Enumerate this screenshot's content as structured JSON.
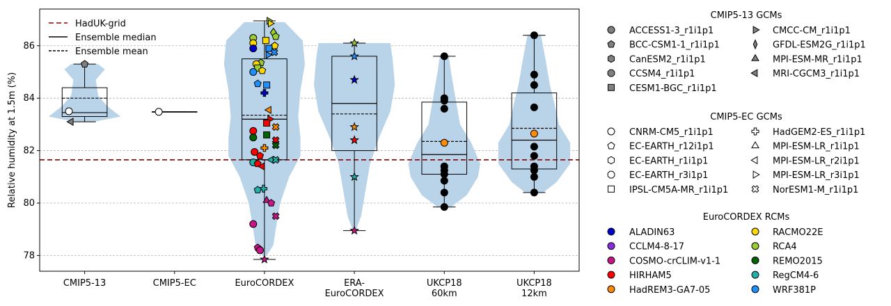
{
  "chart_data": {
    "type": "violin-box",
    "ylabel": "Relative humidity at 1.5m (%)",
    "ylim": [
      77.4,
      87.4
    ],
    "yticks": [
      78,
      80,
      82,
      84,
      86
    ],
    "grid": "horizontal dashed",
    "categories": [
      "CMIP5-13",
      "CMIP5-EC",
      "EuroCORDEX",
      "ERA-\nEuroCORDEX",
      "UKCP18\n60km",
      "UKCP18\n12km"
    ],
    "haduk_grid": 81.65,
    "legend_main": {
      "placement": "upper-left",
      "items": [
        "HadUK-grid",
        "Ensemble median",
        "Ensemble mean"
      ]
    },
    "colors": {
      "violin": "#b9d3e8",
      "haduk": "#8b0000",
      "grid": "#b0b0b0"
    },
    "groups": [
      {
        "name": "CMIP5-13",
        "violin": [
          [
            83.1,
            0.2
          ],
          [
            83.3,
            0.8
          ],
          [
            83.7,
            0.5
          ],
          [
            84.1,
            0.3
          ],
          [
            84.7,
            0.25
          ],
          [
            85.1,
            0.45
          ],
          [
            85.3,
            0.3
          ]
        ],
        "box": {
          "q1": 83.3,
          "median": 83.45,
          "q3": 84.4,
          "mean": 84.0,
          "wlo": 83.1,
          "whi": 85.3
        },
        "points": [
          {
            "v": 85.3,
            "m": "pentagon",
            "c": "#808080",
            "dx": 0
          },
          {
            "v": 83.1,
            "m": "tri-left",
            "c": "#808080",
            "dx": -0.3
          },
          {
            "v": 83.5,
            "m": "circle",
            "c": "#ffffff",
            "dx": -0.35
          }
        ]
      },
      {
        "name": "CMIP5-EC",
        "violin": [],
        "box": {
          "q1": 83.48,
          "median": 83.48,
          "q3": 83.48,
          "mean": 83.48,
          "wlo": 83.48,
          "whi": 83.48
        },
        "points": [
          {
            "v": 83.48,
            "m": "circle",
            "c": "#ffffff",
            "dx": -0.35
          }
        ]
      },
      {
        "name": "EuroCORDEX",
        "violin": [
          [
            78.0,
            0.05
          ],
          [
            78.4,
            0.2
          ],
          [
            79.0,
            0.25
          ],
          [
            80.0,
            0.35
          ],
          [
            81.0,
            0.55
          ],
          [
            81.8,
            0.8
          ],
          [
            82.5,
            0.8
          ],
          [
            83.3,
            0.75
          ],
          [
            84.3,
            0.8
          ],
          [
            85.3,
            0.9
          ],
          [
            86.2,
            0.85
          ],
          [
            86.9,
            0.45
          ]
        ],
        "box": {
          "q1": 81.65,
          "median": 83.2,
          "q3": 85.5,
          "mean": 83.35,
          "wlo": 77.85,
          "whi": 86.95
        },
        "points": [
          {
            "v": 86.95,
            "m": "tri-right",
            "c": "#9acd32",
            "dx": 0.1
          },
          {
            "v": 86.85,
            "m": "tri-right",
            "c": "#ffd700",
            "dx": 0.13
          },
          {
            "v": 86.5,
            "m": "diamond",
            "c": "#9acd32",
            "dx": 0.2
          },
          {
            "v": 86.35,
            "m": "pentagon",
            "c": "#9acd32",
            "dx": 0.25
          },
          {
            "v": 86.3,
            "m": "circle",
            "c": "#9acd32",
            "dx": -0.25
          },
          {
            "v": 86.2,
            "m": "square",
            "c": "#ffd700",
            "dx": 0.03
          },
          {
            "v": 86.1,
            "m": "circle",
            "c": "#ffd700",
            "dx": -0.25
          },
          {
            "v": 86.0,
            "m": "pentagon",
            "c": "#ffd700",
            "dx": 0.23
          },
          {
            "v": 85.9,
            "m": "circle",
            "c": "#0000cd",
            "dx": -0.25
          },
          {
            "v": 85.9,
            "m": "square",
            "c": "#1e90ff",
            "dx": 0.1
          },
          {
            "v": 85.75,
            "m": "cross",
            "c": "#1e90ff",
            "dx": 0.22
          },
          {
            "v": 85.65,
            "m": "tri-right",
            "c": "#1e90ff",
            "dx": 0.08
          },
          {
            "v": 85.35,
            "m": "pentagon",
            "c": "#9acd32",
            "dx": -0.08
          },
          {
            "v": 85.3,
            "m": "circle",
            "c": "#ffd700",
            "dx": -0.18
          },
          {
            "v": 85.15,
            "m": "square",
            "c": "#9acd32",
            "dx": -0.15
          },
          {
            "v": 85.05,
            "m": "pentagon",
            "c": "#ffd700",
            "dx": -0.05
          },
          {
            "v": 85.0,
            "m": "circle",
            "c": "#1e90ff",
            "dx": -0.25
          },
          {
            "v": 84.55,
            "m": "pentagon",
            "c": "#1e90ff",
            "dx": -0.15
          },
          {
            "v": 84.5,
            "m": "square",
            "c": "#1e90ff",
            "dx": 0.05
          },
          {
            "v": 84.2,
            "m": "plus",
            "c": "#0000cd",
            "dx": 0
          },
          {
            "v": 83.55,
            "m": "tri-left",
            "c": "#ff8c00",
            "dx": 0.1
          },
          {
            "v": 83.2,
            "m": "tri-right",
            "c": "#ff0000",
            "dx": 0.12
          },
          {
            "v": 83.05,
            "m": "square",
            "c": "#ff0000",
            "dx": 0.05
          },
          {
            "v": 82.9,
            "m": "cross",
            "c": "#ff8c00",
            "dx": 0.25
          },
          {
            "v": 82.75,
            "m": "circle",
            "c": "#ff0000",
            "dx": -0.25
          },
          {
            "v": 82.6,
            "m": "square",
            "c": "#006400",
            "dx": 0.05
          },
          {
            "v": 82.5,
            "m": "circle",
            "c": "#006400",
            "dx": -0.25
          },
          {
            "v": 82.4,
            "m": "cross",
            "c": "#ff0000",
            "dx": 0.25
          },
          {
            "v": 82.2,
            "m": "cross",
            "c": "#006400",
            "dx": 0.25
          },
          {
            "v": 82.1,
            "m": "plus",
            "c": "#ff8c00",
            "dx": 0
          },
          {
            "v": 81.95,
            "m": "circle",
            "c": "#ff0000",
            "dx": -0.22
          },
          {
            "v": 81.8,
            "m": "pentagon",
            "c": "#ff0000",
            "dx": -0.1
          },
          {
            "v": 81.65,
            "m": "tri-left",
            "c": "#20b2aa",
            "dx": 0.15
          },
          {
            "v": 81.65,
            "m": "cross",
            "c": "#20b2aa",
            "dx": 0.25
          },
          {
            "v": 81.55,
            "m": "circle",
            "c": "#20b2aa",
            "dx": -0.25
          },
          {
            "v": 81.5,
            "m": "pentagon",
            "c": "#ff0000",
            "dx": -0.15
          },
          {
            "v": 81.4,
            "m": "tri-left",
            "c": "#ff0000",
            "dx": -0.05
          },
          {
            "v": 80.55,
            "m": "plus",
            "c": "#20b2aa",
            "dx": -0.02
          },
          {
            "v": 80.5,
            "m": "pentagon",
            "c": "#20b2aa",
            "dx": -0.15
          },
          {
            "v": 80.1,
            "m": "tri-up",
            "c": "#c71585",
            "dx": 0.05
          },
          {
            "v": 80.0,
            "m": "pentagon",
            "c": "#c71585",
            "dx": 0.15
          },
          {
            "v": 79.5,
            "m": "cross",
            "c": "#c71585",
            "dx": 0.25
          },
          {
            "v": 79.2,
            "m": "circle",
            "c": "#c71585",
            "dx": -0.25
          },
          {
            "v": 78.3,
            "m": "pentagon",
            "c": "#c71585",
            "dx": -0.15
          },
          {
            "v": 78.2,
            "m": "circle",
            "c": "#c71585",
            "dx": -0.1
          },
          {
            "v": 77.85,
            "m": "star",
            "c": "#c71585",
            "dx": 0
          }
        ]
      },
      {
        "name": "ERA-EuroCORDEX",
        "violin": [
          [
            78.95,
            0.03
          ],
          [
            79.5,
            0.15
          ],
          [
            80.5,
            0.25
          ],
          [
            81.5,
            0.35
          ],
          [
            82.5,
            0.55
          ],
          [
            83.5,
            0.8
          ],
          [
            84.5,
            0.9
          ],
          [
            85.5,
            0.85
          ],
          [
            86.1,
            0.8
          ]
        ],
        "box": {
          "q1": 82.0,
          "median": 83.8,
          "q3": 85.6,
          "mean": 83.4,
          "wlo": 78.95,
          "whi": 86.1
        },
        "points": [
          {
            "v": 86.1,
            "m": "star",
            "c": "#9acd32",
            "dx": 0
          },
          {
            "v": 85.6,
            "m": "star",
            "c": "#1e90ff",
            "dx": 0
          },
          {
            "v": 84.7,
            "m": "star",
            "c": "#0000cd",
            "dx": 0
          },
          {
            "v": 82.9,
            "m": "star",
            "c": "#ff8c00",
            "dx": 0
          },
          {
            "v": 82.4,
            "m": "star",
            "c": "#ff0000",
            "dx": 0
          },
          {
            "v": 81.0,
            "m": "star",
            "c": "#20b2aa",
            "dx": 0
          },
          {
            "v": 78.95,
            "m": "star",
            "c": "#c71585",
            "dx": 0
          }
        ]
      },
      {
        "name": "UKCP18 60km",
        "violin": [
          [
            79.85,
            0.15
          ],
          [
            80.3,
            0.5
          ],
          [
            81.0,
            0.75
          ],
          [
            81.5,
            0.8
          ],
          [
            82.3,
            0.6
          ],
          [
            83.0,
            0.35
          ],
          [
            84.0,
            0.25
          ],
          [
            85.0,
            0.15
          ],
          [
            85.6,
            0.1
          ]
        ],
        "box": {
          "q1": 81.1,
          "median": 81.85,
          "q3": 83.85,
          "mean": 82.35,
          "wlo": 79.85,
          "whi": 85.6
        },
        "points": [
          {
            "v": 85.6,
            "m": "circle",
            "c": "#000000",
            "dx": 0
          },
          {
            "v": 84.0,
            "m": "circle",
            "c": "#000000",
            "dx": 0
          },
          {
            "v": 83.9,
            "m": "circle",
            "c": "#000000",
            "dx": 0
          },
          {
            "v": 83.6,
            "m": "circle",
            "c": "#000000",
            "dx": 0
          },
          {
            "v": 82.3,
            "m": "circle",
            "c": "#ff8c00",
            "dx": 0
          },
          {
            "v": 81.4,
            "m": "circle",
            "c": "#000000",
            "dx": 0
          },
          {
            "v": 81.25,
            "m": "circle",
            "c": "#000000",
            "dx": 0
          },
          {
            "v": 81.1,
            "m": "circle",
            "c": "#000000",
            "dx": 0
          },
          {
            "v": 80.85,
            "m": "circle",
            "c": "#000000",
            "dx": 0
          },
          {
            "v": 80.4,
            "m": "circle",
            "c": "#000000",
            "dx": 0
          },
          {
            "v": 79.85,
            "m": "circle",
            "c": "#000000",
            "dx": 0
          }
        ]
      },
      {
        "name": "UKCP18 12km",
        "violin": [
          [
            80.4,
            0.2
          ],
          [
            80.8,
            0.5
          ],
          [
            81.5,
            0.8
          ],
          [
            82.3,
            0.8
          ],
          [
            83.0,
            0.55
          ],
          [
            83.8,
            0.45
          ],
          [
            84.5,
            0.35
          ],
          [
            85.5,
            0.25
          ],
          [
            86.4,
            0.15
          ]
        ],
        "box": {
          "q1": 81.3,
          "median": 82.4,
          "q3": 84.2,
          "mean": 82.85,
          "wlo": 80.4,
          "whi": 86.4
        },
        "points": [
          {
            "v": 86.4,
            "m": "circle",
            "c": "#000000",
            "dx": 0
          },
          {
            "v": 84.9,
            "m": "circle",
            "c": "#000000",
            "dx": 0
          },
          {
            "v": 84.5,
            "m": "circle",
            "c": "#000000",
            "dx": 0
          },
          {
            "v": 83.65,
            "m": "circle",
            "c": "#000000",
            "dx": 0
          },
          {
            "v": 82.65,
            "m": "circle",
            "c": "#ff8c00",
            "dx": 0
          },
          {
            "v": 82.15,
            "m": "circle",
            "c": "#000000",
            "dx": 0
          },
          {
            "v": 81.8,
            "m": "circle",
            "c": "#000000",
            "dx": 0
          },
          {
            "v": 81.4,
            "m": "circle",
            "c": "#000000",
            "dx": 0
          },
          {
            "v": 81.25,
            "m": "circle",
            "c": "#000000",
            "dx": 0
          },
          {
            "v": 81.0,
            "m": "circle",
            "c": "#000000",
            "dx": 0
          },
          {
            "v": 80.4,
            "m": "circle",
            "c": "#000000",
            "dx": 0
          }
        ]
      }
    ],
    "legend_side": [
      {
        "title": "CMIP5-13 GCMs",
        "items": [
          {
            "label": "ACCESS1-3_r1i1p1",
            "m": "circle",
            "c": "#808080"
          },
          {
            "label": "BCC-CSM1-1_r1i1p1",
            "m": "pentagon",
            "c": "#808080"
          },
          {
            "label": "CanESM2_r1i1p1",
            "m": "hexagon",
            "c": "#808080"
          },
          {
            "label": "CCSM4_r1i1p1",
            "m": "octagon",
            "c": "#808080"
          },
          {
            "label": "CESM1-BGC_r1i1p1",
            "m": "square",
            "c": "#808080"
          },
          {
            "label": "CMCC-CM_r1i1p1",
            "m": "tri-right",
            "c": "#808080"
          },
          {
            "label": "GFDL-ESM2G_r1i1p1",
            "m": "thin-diamond",
            "c": "#808080"
          },
          {
            "label": "MPI-ESM-MR_r1i1p1",
            "m": "tri-up",
            "c": "#808080"
          },
          {
            "label": "MRI-CGCM3_r1i1p1",
            "m": "tri-left",
            "c": "#808080"
          }
        ]
      },
      {
        "title": "CMIP5-EC GCMs",
        "items": [
          {
            "label": "CNRM-CM5_r1i1p1",
            "m": "circle",
            "c": "#ffffff"
          },
          {
            "label": "EC-EARTH_r12i1p1",
            "m": "pentagon",
            "c": "#ffffff"
          },
          {
            "label": "EC-EARTH_r1i1p1",
            "m": "hexagon",
            "c": "#ffffff"
          },
          {
            "label": "EC-EARTH_r3i1p1",
            "m": "octagon",
            "c": "#ffffff"
          },
          {
            "label": "IPSL-CM5A-MR_r1i1p1",
            "m": "square",
            "c": "#ffffff"
          },
          {
            "label": "HadGEM2-ES_r1i1p1",
            "m": "plus",
            "c": "#ffffff"
          },
          {
            "label": "MPI-ESM-LR_r1i1p1",
            "m": "tri-up",
            "c": "#ffffff"
          },
          {
            "label": "MPI-ESM-LR_r2i1p1",
            "m": "tri-left",
            "c": "#ffffff"
          },
          {
            "label": "MPI-ESM-LR_r3i1p1",
            "m": "tri-right",
            "c": "#ffffff"
          },
          {
            "label": "NorESM1-M_r1i1p1",
            "m": "cross",
            "c": "#ffffff"
          }
        ]
      },
      {
        "title": "EuroCORDEX RCMs",
        "items": [
          {
            "label": "ALADIN63",
            "m": "circle",
            "c": "#0000cd"
          },
          {
            "label": "CCLM4-8-17",
            "m": "circle",
            "c": "#8a2be2"
          },
          {
            "label": "COSMO-crCLIM-v1-1",
            "m": "circle",
            "c": "#c71585"
          },
          {
            "label": "HIRHAM5",
            "m": "circle",
            "c": "#ff0000"
          },
          {
            "label": "HadREM3-GA7-05",
            "m": "circle",
            "c": "#ff8c00"
          },
          {
            "label": "RACMO22E",
            "m": "circle",
            "c": "#ffd700"
          },
          {
            "label": "RCA4",
            "m": "circle",
            "c": "#9acd32"
          },
          {
            "label": "REMO2015",
            "m": "circle",
            "c": "#006400"
          },
          {
            "label": "RegCM4-6",
            "m": "circle",
            "c": "#20b2aa"
          },
          {
            "label": "WRF381P",
            "m": "circle",
            "c": "#1e90ff"
          }
        ]
      }
    ]
  }
}
